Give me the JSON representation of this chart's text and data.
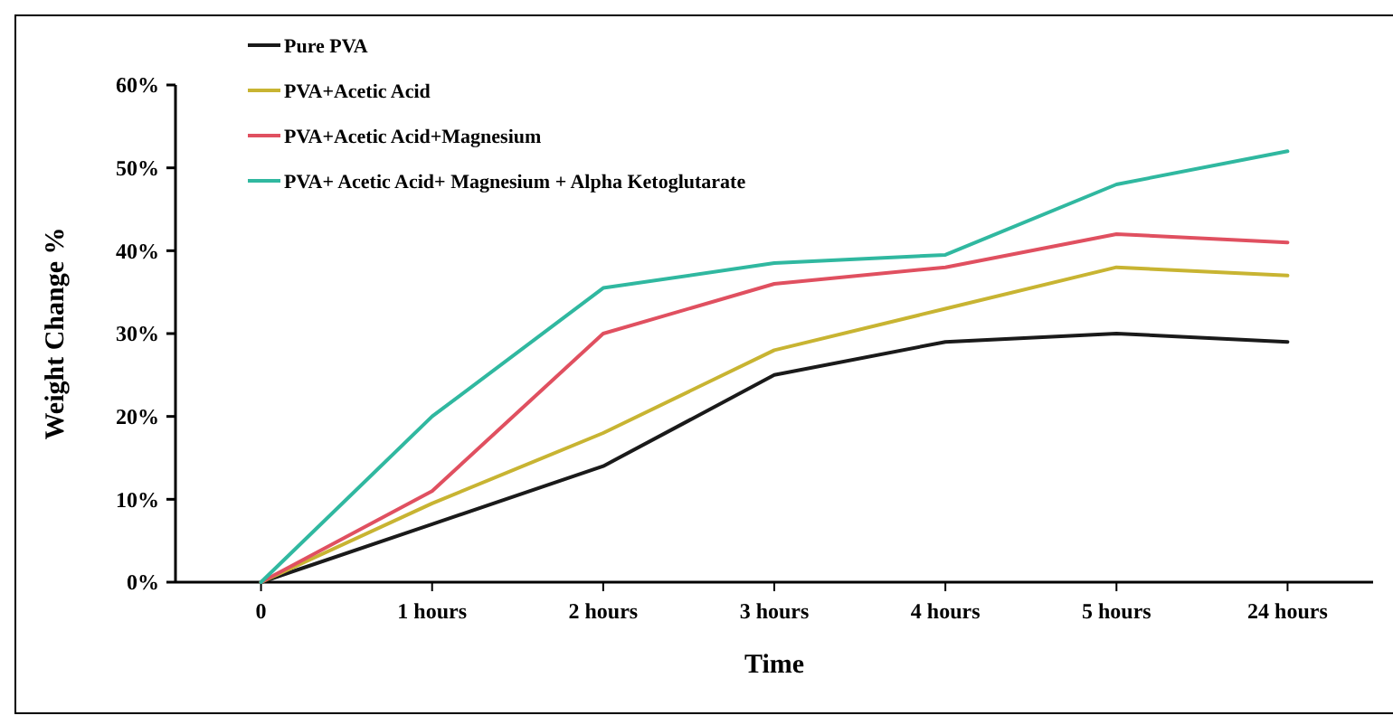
{
  "chart_data": {
    "type": "line",
    "xlabel": "Time",
    "ylabel": "Weight Change %",
    "categories": [
      "0",
      "1 hours",
      "2 hours",
      "3 hours",
      "4 hours",
      "5 hours",
      "24 hours"
    ],
    "series": [
      {
        "name": "Pure PVA",
        "color": "#1a1a1a",
        "values": [
          0,
          7,
          14,
          25,
          29,
          30,
          29
        ]
      },
      {
        "name": "PVA+Acetic Acid",
        "color": "#c8b432",
        "values": [
          0,
          9.5,
          18,
          28,
          33,
          38,
          37
        ]
      },
      {
        "name": "PVA+Acetic Acid+Magnesium",
        "color": "#e05060",
        "values": [
          0,
          11,
          30,
          36,
          38,
          42,
          41
        ]
      },
      {
        "name": "PVA+ Acetic Acid+ Magnesium + Alpha Ketoglutarate",
        "color": "#30b8a0",
        "values": [
          0,
          20,
          35.5,
          38.5,
          39.5,
          48,
          52
        ]
      }
    ],
    "ylim": [
      0,
      60
    ],
    "yticks": [
      {
        "value": 0,
        "label": "0%"
      },
      {
        "value": 10,
        "label": "10%"
      },
      {
        "value": 20,
        "label": "20%"
      },
      {
        "value": 30,
        "label": "30%"
      },
      {
        "value": 40,
        "label": "40%"
      },
      {
        "value": 50,
        "label": "50%"
      },
      {
        "value": 60,
        "label": "60%"
      }
    ],
    "grid": false,
    "legend": "top left",
    "marker": "none",
    "line_style": "solid"
  }
}
